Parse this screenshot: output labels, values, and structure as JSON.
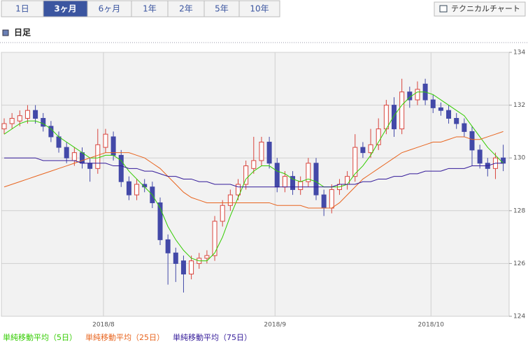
{
  "ui": {
    "tabs": [
      "1日",
      "3ヶ月",
      "6ヶ月",
      "1年",
      "2年",
      "5年",
      "10年"
    ],
    "active_tab": 1,
    "button": "テクニカルチャート",
    "heading": "日足"
  },
  "chart_data": {
    "type": "candlestick",
    "categories": [
      null,
      null,
      null,
      null,
      null,
      null,
      null,
      null,
      null,
      null,
      null,
      null,
      null,
      "2018/8",
      null,
      null,
      null,
      null,
      null,
      null,
      null,
      null,
      null,
      null,
      null,
      null,
      null,
      null,
      null,
      null,
      null,
      null,
      null,
      null,
      null,
      "2018/9",
      null,
      null,
      null,
      null,
      null,
      null,
      null,
      null,
      null,
      null,
      null,
      null,
      null,
      null,
      null,
      null,
      null,
      null,
      null,
      "2018/10",
      null,
      null,
      null,
      null,
      null,
      null,
      null,
      null,
      null
    ],
    "open": [
      131.1,
      131.3,
      131.4,
      131.5,
      131.8,
      131.5,
      131.2,
      130.8,
      130.4,
      129.9,
      130.2,
      129.8,
      129.6,
      130.4,
      130.8,
      130.1,
      129.1,
      128.6,
      129.0,
      128.9,
      128.3,
      126.9,
      126.4,
      126.1,
      125.6,
      126.0,
      126.2,
      126.3,
      127.6,
      128.2,
      128.6,
      129.0,
      129.6,
      129.9,
      130.6,
      129.8,
      128.9,
      129.3,
      128.8,
      129.1,
      129.8,
      128.6,
      128.1,
      128.8,
      129.0,
      129.3,
      130.4,
      130.2,
      130.5,
      131.1,
      132.0,
      131.1,
      132.5,
      132.2,
      132.8,
      132.2,
      131.9,
      131.8,
      131.5,
      131.3,
      131.0,
      130.3,
      129.8,
      129.6,
      130.0
    ],
    "high": [
      131.5,
      131.7,
      131.8,
      132.0,
      132.0,
      131.7,
      131.4,
      131.0,
      130.6,
      130.4,
      130.4,
      130.0,
      131.1,
      131.1,
      131.0,
      130.3,
      129.3,
      129.2,
      129.2,
      129.1,
      128.5,
      127.1,
      126.6,
      126.3,
      126.3,
      126.4,
      126.5,
      127.8,
      128.4,
      128.8,
      129.2,
      129.9,
      130.8,
      130.8,
      130.8,
      130.0,
      129.5,
      129.5,
      129.3,
      130.0,
      130.0,
      128.8,
      129.0,
      129.2,
      129.5,
      130.9,
      130.6,
      131.1,
      131.5,
      132.2,
      132.3,
      133.0,
      132.7,
      132.9,
      133.0,
      132.4,
      132.1,
      132.0,
      131.7,
      131.5,
      131.2,
      130.5,
      130.0,
      130.2,
      130.5
    ],
    "low": [
      130.9,
      131.1,
      131.2,
      131.3,
      131.3,
      131.0,
      130.6,
      130.2,
      129.8,
      129.7,
      129.6,
      129.1,
      129.4,
      130.2,
      129.9,
      128.9,
      128.4,
      128.4,
      128.7,
      128.1,
      126.7,
      125.2,
      125.3,
      124.9,
      125.4,
      125.8,
      126.0,
      126.1,
      127.4,
      128.0,
      128.4,
      128.8,
      129.4,
      129.7,
      129.6,
      128.7,
      128.7,
      128.6,
      128.6,
      128.9,
      128.4,
      127.8,
      127.9,
      128.6,
      128.8,
      129.1,
      130.0,
      130.0,
      130.3,
      130.9,
      130.8,
      130.9,
      131.9,
      132.0,
      132.0,
      131.7,
      131.6,
      131.3,
      131.1,
      130.8,
      129.7,
      129.6,
      129.3,
      129.2,
      129.5
    ],
    "close": [
      131.3,
      131.5,
      131.6,
      131.8,
      131.5,
      131.2,
      130.8,
      130.4,
      130.0,
      130.2,
      129.8,
      129.6,
      130.5,
      130.9,
      130.1,
      129.1,
      128.6,
      129.0,
      128.9,
      128.3,
      126.9,
      126.4,
      126.0,
      125.6,
      126.1,
      126.2,
      126.3,
      127.6,
      128.2,
      128.6,
      129.0,
      129.7,
      129.9,
      130.6,
      129.8,
      128.9,
      129.3,
      128.8,
      129.1,
      129.8,
      128.6,
      128.1,
      128.8,
      129.0,
      129.3,
      130.4,
      130.2,
      130.5,
      131.1,
      132.0,
      131.1,
      132.5,
      132.2,
      132.6,
      132.2,
      131.9,
      131.8,
      131.5,
      131.3,
      131.0,
      130.3,
      129.8,
      129.6,
      130.0,
      129.8
    ],
    "up_color": "#d9453d",
    "down_color": "#4349a8",
    "series": [
      {
        "name": "単純移動平均（5日）",
        "color": "#33cc00",
        "values": [
          130.9,
          131.1,
          131.3,
          131.4,
          131.4,
          131.3,
          131.1,
          130.8,
          130.6,
          130.4,
          130.2,
          130.0,
          130.0,
          130.1,
          130.1,
          129.9,
          129.5,
          129.2,
          128.9,
          128.6,
          128.1,
          127.4,
          126.9,
          126.5,
          126.2,
          126.1,
          126.1,
          126.4,
          127.0,
          127.8,
          128.5,
          129.2,
          129.5,
          129.7,
          129.7,
          129.5,
          129.4,
          129.2,
          129.1,
          129.2,
          129.1,
          128.9,
          128.9,
          128.9,
          129.0,
          129.4,
          129.7,
          130.1,
          130.6,
          131.1,
          131.6,
          132.0,
          132.3,
          132.5,
          132.5,
          132.4,
          132.2,
          132.0,
          131.8,
          131.6,
          131.2,
          130.8,
          130.4,
          130.1,
          129.8
        ]
      },
      {
        "name": "単純移動平均（25日）",
        "color": "#e8641e",
        "values": [
          128.9,
          129.0,
          129.1,
          129.2,
          129.3,
          129.4,
          129.5,
          129.6,
          129.7,
          129.8,
          129.9,
          130.0,
          130.1,
          130.2,
          130.2,
          130.2,
          130.2,
          130.1,
          130.0,
          129.8,
          129.6,
          129.3,
          129.0,
          128.7,
          128.5,
          128.4,
          128.3,
          128.3,
          128.3,
          128.3,
          128.3,
          128.3,
          128.3,
          128.3,
          128.3,
          128.2,
          128.2,
          128.2,
          128.2,
          128.1,
          128.1,
          128.1,
          128.1,
          128.3,
          128.6,
          128.9,
          129.2,
          129.4,
          129.6,
          129.8,
          130.0,
          130.2,
          130.3,
          130.4,
          130.5,
          130.6,
          130.6,
          130.7,
          130.8,
          130.8,
          130.7,
          130.7,
          130.8,
          130.9,
          131.0
        ]
      },
      {
        "name": "単純移動平均（75日）",
        "color": "#331a99",
        "values": [
          130.0,
          130.0,
          130.0,
          130.0,
          130.0,
          129.9,
          129.9,
          129.9,
          129.9,
          129.9,
          129.8,
          129.8,
          129.8,
          129.8,
          129.7,
          129.7,
          129.6,
          129.6,
          129.5,
          129.5,
          129.4,
          129.3,
          129.3,
          129.2,
          129.2,
          129.1,
          129.1,
          129.0,
          129.0,
          129.0,
          128.9,
          128.9,
          128.9,
          128.9,
          128.9,
          128.9,
          128.9,
          128.9,
          128.9,
          128.9,
          128.9,
          128.9,
          128.9,
          129.0,
          129.0,
          129.0,
          129.1,
          129.1,
          129.2,
          129.2,
          129.3,
          129.3,
          129.4,
          129.4,
          129.5,
          129.5,
          129.5,
          129.6,
          129.6,
          129.6,
          129.7,
          129.7,
          129.7,
          129.8,
          129.8
        ]
      }
    ],
    "ylim": [
      124,
      134
    ],
    "yticks": [
      124,
      126,
      128,
      130,
      132,
      134
    ],
    "grid": true
  }
}
